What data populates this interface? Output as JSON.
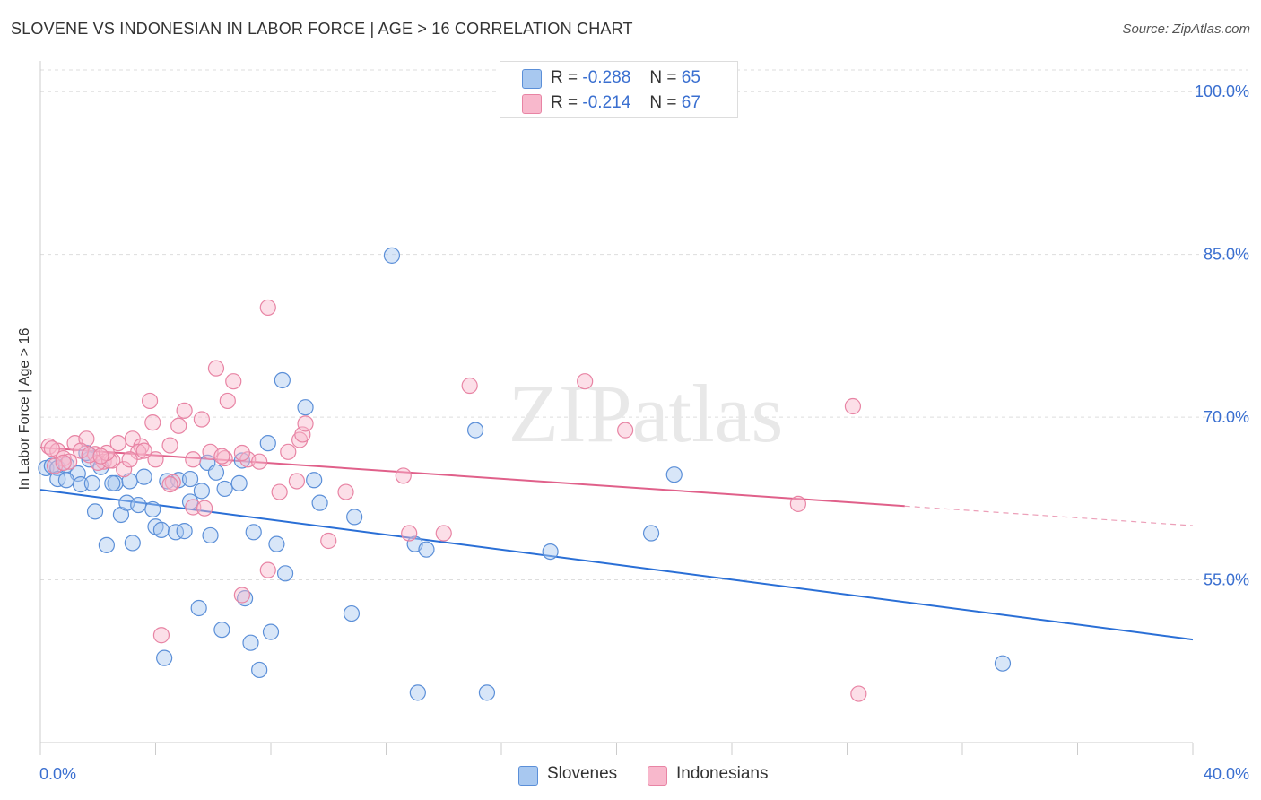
{
  "title": "SLOVENE VS INDONESIAN IN LABOR FORCE | AGE > 16 CORRELATION CHART",
  "source": "Source: ZipAtlas.com",
  "watermark": "ZIPatlas",
  "legend_top": [
    {
      "r_label": "R =",
      "r_value": "-0.288",
      "n_label": "N =",
      "n_value": "65",
      "color": "#a8c8f0"
    },
    {
      "r_label": "R =",
      "r_value": "-0.214",
      "n_label": "N =",
      "n_value": "67",
      "color": "#f8b8cc"
    }
  ],
  "legend_bottom": [
    {
      "label": "Slovenes",
      "color": "#a8c8f0"
    },
    {
      "label": "Indonesians",
      "color": "#f8b8cc"
    }
  ],
  "chart_data": {
    "type": "scatter",
    "title": "SLOVENE VS INDONESIAN IN LABOR FORCE | AGE > 16 CORRELATION CHART",
    "xlabel": "",
    "ylabel": "In Labor Force | Age > 16",
    "xlim": [
      0,
      40
    ],
    "ylim": [
      40,
      102
    ],
    "x_tick_labels": [
      "0.0%",
      "40.0%"
    ],
    "y_ticks": [
      55,
      70,
      85,
      100
    ],
    "y_tick_labels": [
      "55.0%",
      "70.0%",
      "85.0%",
      "100.0%"
    ],
    "grid": true,
    "legend_position": "top-center",
    "series": [
      {
        "name": "Slovenes",
        "color": "#5b8fd8",
        "fill": "#a8c8f0",
        "trend": {
          "x": [
            0,
            40
          ],
          "y": [
            63.3,
            49.5
          ],
          "color": "#2a6fd6"
        },
        "points": [
          [
            0.2,
            65.3
          ],
          [
            0.4,
            65.5
          ],
          [
            0.6,
            65.3
          ],
          [
            0.9,
            65.6
          ],
          [
            1.3,
            64.8
          ],
          [
            0.6,
            64.3
          ],
          [
            0.9,
            64.2
          ],
          [
            1.7,
            66.1
          ],
          [
            2.1,
            65.4
          ],
          [
            1.4,
            63.8
          ],
          [
            1.8,
            63.9
          ],
          [
            2.6,
            63.9
          ],
          [
            2.5,
            63.9
          ],
          [
            3.1,
            64.1
          ],
          [
            3.6,
            64.5
          ],
          [
            1.9,
            61.3
          ],
          [
            2.8,
            61.0
          ],
          [
            3.0,
            62.1
          ],
          [
            3.4,
            61.9
          ],
          [
            3.9,
            61.5
          ],
          [
            2.3,
            58.2
          ],
          [
            3.2,
            58.4
          ],
          [
            4.0,
            59.9
          ],
          [
            4.2,
            59.6
          ],
          [
            4.4,
            64.1
          ],
          [
            4.8,
            64.2
          ],
          [
            5.2,
            64.3
          ],
          [
            5.6,
            63.2
          ],
          [
            5.2,
            62.2
          ],
          [
            5.8,
            65.8
          ],
          [
            6.4,
            63.4
          ],
          [
            6.9,
            63.9
          ],
          [
            7.4,
            59.4
          ],
          [
            8.2,
            58.3
          ],
          [
            8.5,
            55.6
          ],
          [
            6.1,
            64.9
          ],
          [
            7.0,
            66.0
          ],
          [
            7.9,
            67.6
          ],
          [
            8.4,
            73.4
          ],
          [
            9.5,
            64.2
          ],
          [
            9.7,
            62.1
          ],
          [
            10.9,
            60.8
          ],
          [
            13.0,
            58.3
          ],
          [
            13.4,
            57.8
          ],
          [
            17.7,
            57.6
          ],
          [
            21.2,
            59.3
          ],
          [
            22.0,
            64.7
          ],
          [
            15.1,
            68.8
          ],
          [
            12.2,
            84.9
          ],
          [
            9.2,
            70.9
          ],
          [
            4.7,
            59.4
          ],
          [
            5.0,
            59.5
          ],
          [
            5.9,
            59.1
          ],
          [
            5.5,
            52.4
          ],
          [
            6.3,
            50.4
          ],
          [
            7.1,
            53.3
          ],
          [
            8.0,
            50.2
          ],
          [
            7.6,
            46.7
          ],
          [
            10.8,
            51.9
          ],
          [
            4.3,
            47.8
          ],
          [
            13.1,
            44.6
          ],
          [
            15.5,
            44.6
          ],
          [
            33.4,
            47.3
          ],
          [
            7.3,
            49.2
          ],
          [
            1.6,
            66.7
          ]
        ]
      },
      {
        "name": "Indonesians",
        "color": "#e884a4",
        "fill": "#f8b8cc",
        "trend": {
          "x": [
            0,
            30
          ],
          "y": [
            67.2,
            61.8
          ],
          "color": "#e0608a"
        },
        "trend_dashed": {
          "x": [
            30,
            40
          ],
          "y": [
            61.8,
            60.0
          ]
        },
        "points": [
          [
            0.3,
            67.3
          ],
          [
            0.6,
            66.9
          ],
          [
            0.8,
            66.2
          ],
          [
            1.2,
            67.6
          ],
          [
            1.6,
            68.0
          ],
          [
            1.9,
            66.6
          ],
          [
            2.2,
            65.9
          ],
          [
            2.5,
            66.0
          ],
          [
            0.5,
            65.5
          ],
          [
            1.0,
            65.9
          ],
          [
            1.4,
            66.9
          ],
          [
            2.0,
            65.8
          ],
          [
            2.7,
            67.6
          ],
          [
            3.2,
            68.0
          ],
          [
            3.5,
            67.3
          ],
          [
            3.9,
            69.5
          ],
          [
            4.5,
            67.4
          ],
          [
            4.8,
            69.2
          ],
          [
            5.0,
            70.6
          ],
          [
            5.6,
            69.8
          ],
          [
            6.1,
            74.5
          ],
          [
            6.7,
            73.3
          ],
          [
            6.5,
            71.5
          ],
          [
            7.2,
            66.1
          ],
          [
            7.6,
            65.9
          ],
          [
            8.6,
            66.8
          ],
          [
            9.0,
            67.9
          ],
          [
            9.1,
            68.4
          ],
          [
            9.2,
            69.4
          ],
          [
            3.8,
            71.5
          ],
          [
            3.4,
            66.8
          ],
          [
            2.9,
            65.2
          ],
          [
            2.4,
            66.0
          ],
          [
            4.6,
            64.0
          ],
          [
            5.3,
            66.1
          ],
          [
            5.9,
            66.8
          ],
          [
            6.4,
            66.2
          ],
          [
            7.0,
            66.7
          ],
          [
            4.0,
            66.1
          ],
          [
            5.3,
            61.7
          ],
          [
            8.3,
            63.1
          ],
          [
            8.9,
            64.1
          ],
          [
            10.6,
            63.1
          ],
          [
            12.6,
            64.6
          ],
          [
            12.8,
            59.3
          ],
          [
            14.0,
            59.3
          ],
          [
            14.9,
            72.9
          ],
          [
            18.9,
            73.3
          ],
          [
            20.3,
            68.8
          ],
          [
            28.2,
            71.0
          ],
          [
            26.3,
            62.0
          ],
          [
            10.0,
            58.6
          ],
          [
            7.9,
            55.9
          ],
          [
            7.0,
            53.6
          ],
          [
            4.2,
            49.9
          ],
          [
            0.4,
            67.1
          ],
          [
            1.7,
            66.5
          ],
          [
            2.3,
            66.7
          ],
          [
            3.6,
            66.9
          ],
          [
            5.7,
            61.6
          ],
          [
            7.9,
            80.1
          ],
          [
            28.4,
            44.5
          ],
          [
            0.8,
            65.8
          ],
          [
            2.1,
            66.4
          ],
          [
            4.5,
            63.8
          ],
          [
            6.3,
            66.4
          ],
          [
            3.1,
            66.1
          ]
        ]
      }
    ]
  }
}
